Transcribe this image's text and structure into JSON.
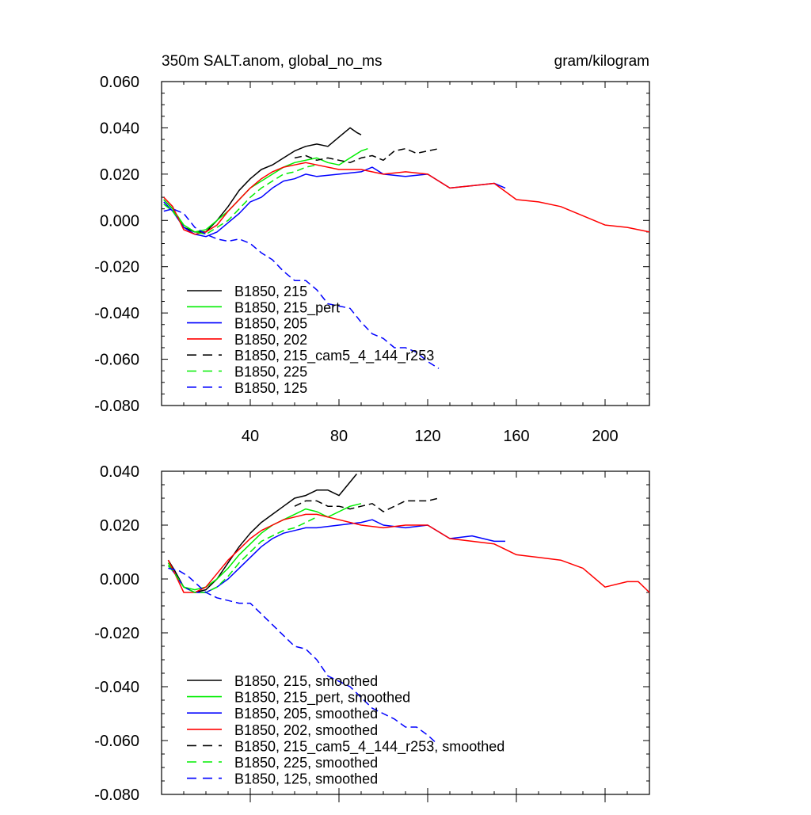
{
  "chart_data": [
    {
      "type": "line",
      "title": "350m SALT.anom, global_no_ms",
      "units": "gram/kilogram",
      "xlabel": "",
      "ylabel": "",
      "xlim": [
        0,
        220
      ],
      "ylim": [
        -0.08,
        0.06
      ],
      "xtick_labels": [
        {
          "v": 40,
          "label": "40"
        },
        {
          "v": 80,
          "label": "80"
        },
        {
          "v": 120,
          "label": "120"
        },
        {
          "v": 160,
          "label": "160"
        },
        {
          "v": 200,
          "label": "200"
        }
      ],
      "ytick_labels": [
        {
          "v": 0.06,
          "label": "0.060"
        },
        {
          "v": 0.04,
          "label": "0.040"
        },
        {
          "v": 0.02,
          "label": "0.020"
        },
        {
          "v": 0.0,
          "label": "0.000"
        },
        {
          "v": -0.02,
          "label": "-0.020"
        },
        {
          "v": -0.04,
          "label": "-0.040"
        },
        {
          "v": -0.06,
          "label": "-0.060"
        },
        {
          "v": -0.08,
          "label": "-0.080"
        }
      ],
      "legend_position": "bottom-left",
      "series": [
        {
          "name": "B1850, 215",
          "color": "#000000",
          "dash": false,
          "x": [
            1,
            5,
            10,
            15,
            20,
            25,
            30,
            35,
            40,
            45,
            50,
            55,
            60,
            65,
            70,
            75,
            80,
            85,
            88,
            90
          ],
          "y": [
            0.009,
            0.005,
            -0.003,
            -0.005,
            -0.005,
            0.0,
            0.006,
            0.013,
            0.018,
            0.022,
            0.024,
            0.027,
            0.03,
            0.032,
            0.033,
            0.032,
            0.036,
            0.04,
            0.038,
            0.037
          ]
        },
        {
          "name": "B1850, 215_pert",
          "color": "#00ee00",
          "dash": false,
          "x": [
            1,
            5,
            10,
            15,
            20,
            25,
            30,
            35,
            40,
            45,
            50,
            55,
            60,
            65,
            70,
            75,
            80,
            85,
            90,
            93
          ],
          "y": [
            0.009,
            0.005,
            -0.002,
            -0.005,
            -0.004,
            0.0,
            0.004,
            0.009,
            0.014,
            0.017,
            0.02,
            0.023,
            0.025,
            0.026,
            0.027,
            0.025,
            0.024,
            0.027,
            0.03,
            0.031
          ]
        },
        {
          "name": "B1850, 205",
          "color": "#0000ff",
          "dash": false,
          "x": [
            1,
            5,
            10,
            15,
            20,
            25,
            30,
            35,
            40,
            45,
            50,
            55,
            60,
            65,
            70,
            80,
            90,
            95,
            100,
            110,
            120,
            130,
            140,
            150,
            155
          ],
          "y": [
            0.008,
            0.004,
            -0.003,
            -0.006,
            -0.007,
            -0.005,
            -0.001,
            0.003,
            0.008,
            0.01,
            0.014,
            0.017,
            0.018,
            0.02,
            0.019,
            0.02,
            0.021,
            0.023,
            0.02,
            0.019,
            0.02,
            0.014,
            0.015,
            0.016,
            0.014
          ]
        },
        {
          "name": "B1850, 202",
          "color": "#ff0000",
          "dash": false,
          "x": [
            1,
            5,
            10,
            15,
            20,
            25,
            30,
            35,
            40,
            45,
            50,
            55,
            60,
            65,
            70,
            80,
            90,
            100,
            110,
            120,
            130,
            140,
            150,
            160,
            170,
            180,
            190,
            200,
            210,
            220
          ],
          "y": [
            0.01,
            0.006,
            -0.004,
            -0.006,
            -0.005,
            -0.002,
            0.004,
            0.009,
            0.014,
            0.018,
            0.021,
            0.023,
            0.024,
            0.025,
            0.024,
            0.022,
            0.022,
            0.02,
            0.021,
            0.02,
            0.014,
            0.015,
            0.016,
            0.009,
            0.008,
            0.006,
            0.002,
            -0.002,
            -0.003,
            -0.005
          ]
        },
        {
          "name": "B1850, 215_cam5_4_144_r253",
          "color": "#000000",
          "dash": true,
          "x": [
            60,
            65,
            70,
            75,
            80,
            85,
            90,
            95,
            100,
            105,
            110,
            115,
            120,
            125
          ],
          "y": [
            0.027,
            0.028,
            0.026,
            0.027,
            0.026,
            0.025,
            0.027,
            0.028,
            0.026,
            0.03,
            0.031,
            0.029,
            0.03,
            0.031
          ]
        },
        {
          "name": "B1850, 225",
          "color": "#00ee00",
          "dash": true,
          "x": [
            1,
            5,
            10,
            15,
            20,
            25,
            30,
            35,
            40,
            45,
            50,
            55,
            60,
            65,
            70
          ],
          "y": [
            0.007,
            0.004,
            -0.002,
            -0.005,
            -0.006,
            -0.003,
            0.0,
            0.005,
            0.01,
            0.014,
            0.017,
            0.02,
            0.021,
            0.023,
            0.024
          ]
        },
        {
          "name": "B1850, 125",
          "color": "#0000ff",
          "dash": true,
          "x": [
            1,
            5,
            10,
            15,
            20,
            25,
            30,
            35,
            40,
            45,
            50,
            55,
            60,
            65,
            70,
            75,
            80,
            85,
            90,
            95,
            100,
            105,
            110,
            115,
            120,
            125
          ],
          "y": [
            0.004,
            0.005,
            0.003,
            -0.003,
            -0.006,
            -0.008,
            -0.009,
            -0.008,
            -0.01,
            -0.014,
            -0.017,
            -0.022,
            -0.026,
            -0.026,
            -0.03,
            -0.036,
            -0.037,
            -0.038,
            -0.044,
            -0.049,
            -0.051,
            -0.055,
            -0.055,
            -0.057,
            -0.061,
            -0.064
          ]
        }
      ]
    },
    {
      "type": "line",
      "title": "",
      "xlabel": "",
      "ylabel": "",
      "xlim": [
        0,
        220
      ],
      "ylim": [
        -0.08,
        0.04
      ],
      "xtick_labels": [],
      "ytick_labels": [
        {
          "v": 0.04,
          "label": "0.040"
        },
        {
          "v": 0.02,
          "label": "0.020"
        },
        {
          "v": 0.0,
          "label": "0.000"
        },
        {
          "v": -0.02,
          "label": "-0.020"
        },
        {
          "v": -0.04,
          "label": "-0.040"
        },
        {
          "v": -0.06,
          "label": "-0.060"
        },
        {
          "v": -0.08,
          "label": "-0.080"
        }
      ],
      "legend_position": "bottom-left",
      "series": [
        {
          "name": "B1850, 215, smoothed",
          "color": "#000000",
          "dash": false,
          "x": [
            3,
            6,
            10,
            15,
            20,
            25,
            30,
            35,
            40,
            45,
            50,
            55,
            60,
            65,
            70,
            75,
            80,
            85,
            88
          ],
          "y": [
            0.007,
            0.003,
            -0.003,
            -0.005,
            -0.004,
            0.0,
            0.006,
            0.012,
            0.017,
            0.021,
            0.024,
            0.027,
            0.03,
            0.031,
            0.033,
            0.033,
            0.031,
            0.036,
            0.039
          ]
        },
        {
          "name": "B1850, 215_pert, smoothed",
          "color": "#00ee00",
          "dash": false,
          "x": [
            3,
            6,
            10,
            15,
            20,
            25,
            30,
            35,
            40,
            45,
            50,
            55,
            60,
            65,
            70,
            75,
            80,
            85,
            90
          ],
          "y": [
            0.006,
            0.002,
            -0.003,
            -0.004,
            -0.003,
            0.0,
            0.004,
            0.009,
            0.013,
            0.017,
            0.02,
            0.022,
            0.024,
            0.026,
            0.025,
            0.023,
            0.025,
            0.027,
            0.028
          ]
        },
        {
          "name": "B1850, 205, smoothed",
          "color": "#0000ff",
          "dash": false,
          "x": [
            3,
            6,
            10,
            15,
            20,
            25,
            30,
            35,
            40,
            45,
            50,
            55,
            60,
            65,
            70,
            80,
            90,
            95,
            100,
            110,
            120,
            130,
            140,
            150,
            155
          ],
          "y": [
            0.005,
            0.002,
            -0.003,
            -0.005,
            -0.005,
            -0.003,
            0.0,
            0.004,
            0.008,
            0.012,
            0.015,
            0.017,
            0.018,
            0.019,
            0.019,
            0.02,
            0.021,
            0.022,
            0.02,
            0.019,
            0.02,
            0.015,
            0.016,
            0.014,
            0.014
          ]
        },
        {
          "name": "B1850, 202, smoothed",
          "color": "#ff0000",
          "dash": false,
          "x": [
            3,
            6,
            10,
            15,
            20,
            25,
            30,
            35,
            40,
            45,
            50,
            55,
            60,
            65,
            70,
            80,
            90,
            100,
            110,
            120,
            130,
            140,
            150,
            160,
            170,
            180,
            190,
            200,
            210,
            215,
            220
          ],
          "y": [
            0.007,
            0.002,
            -0.005,
            -0.005,
            -0.003,
            0.002,
            0.007,
            0.011,
            0.015,
            0.018,
            0.02,
            0.022,
            0.023,
            0.024,
            0.024,
            0.022,
            0.02,
            0.019,
            0.02,
            0.02,
            0.015,
            0.014,
            0.013,
            0.009,
            0.008,
            0.007,
            0.004,
            -0.003,
            -0.001,
            -0.001,
            -0.005
          ]
        },
        {
          "name": "B1850, 215_cam5_4_144_r253, smoothed",
          "color": "#000000",
          "dash": true,
          "x": [
            60,
            65,
            70,
            75,
            80,
            85,
            90,
            95,
            100,
            105,
            110,
            115,
            120,
            125
          ],
          "y": [
            0.027,
            0.029,
            0.029,
            0.027,
            0.027,
            0.026,
            0.027,
            0.028,
            0.025,
            0.027,
            0.029,
            0.029,
            0.029,
            0.03
          ]
        },
        {
          "name": "B1850, 225, smoothed",
          "color": "#00ee00",
          "dash": true,
          "x": [
            3,
            6,
            10,
            15,
            20,
            25,
            30,
            35,
            40,
            45,
            50,
            55,
            60,
            65,
            70
          ],
          "y": [
            0.005,
            0.002,
            -0.003,
            -0.005,
            -0.005,
            -0.003,
            0.001,
            0.006,
            0.01,
            0.014,
            0.016,
            0.018,
            0.019,
            0.021,
            0.023
          ]
        },
        {
          "name": "B1850, 125, smoothed",
          "color": "#0000ff",
          "dash": true,
          "x": [
            3,
            8,
            12,
            16,
            20,
            25,
            30,
            35,
            40,
            45,
            50,
            55,
            60,
            65,
            70,
            75,
            80,
            85,
            90,
            95,
            100,
            105,
            110,
            115,
            120,
            124
          ],
          "y": [
            0.004,
            0.003,
            0.001,
            -0.002,
            -0.005,
            -0.007,
            -0.008,
            -0.009,
            -0.009,
            -0.013,
            -0.017,
            -0.021,
            -0.025,
            -0.026,
            -0.03,
            -0.036,
            -0.038,
            -0.04,
            -0.044,
            -0.048,
            -0.05,
            -0.052,
            -0.055,
            -0.055,
            -0.058,
            -0.061
          ]
        }
      ]
    }
  ]
}
